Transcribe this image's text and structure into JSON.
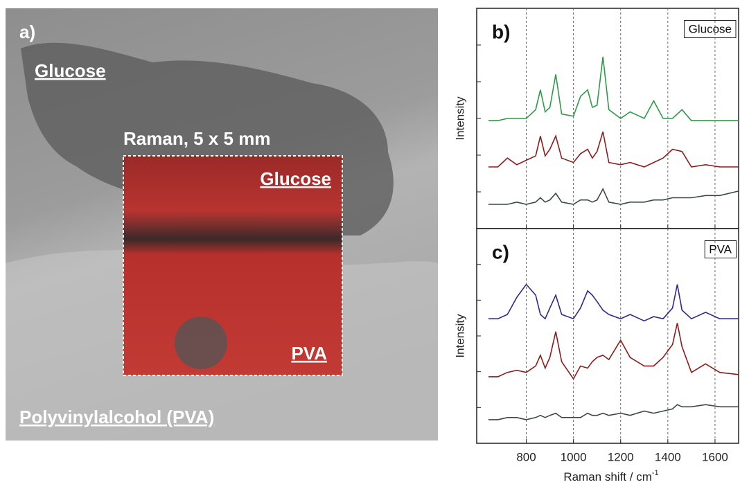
{
  "photo": {
    "panel_label": "a)",
    "labels": [
      "Glucose",
      "Raman, 5 x 5 mm",
      "Glucose",
      "PVA",
      "Polyvinylalcohol (PVA)"
    ]
  },
  "chart_data": [
    {
      "type": "line",
      "panel_label": "b)",
      "annotation": "Glucose",
      "ylabel": "Intensity",
      "x": [
        640,
        680,
        720,
        760,
        800,
        840,
        860,
        880,
        900,
        925,
        950,
        1000,
        1030,
        1060,
        1080,
        1100,
        1125,
        1150,
        1200,
        1240,
        1300,
        1340,
        1380,
        1420,
        1460,
        1500,
        1560,
        1620,
        1700
      ],
      "series": [
        {
          "color": "#2e9a48",
          "values": [
            4.9,
            4.9,
            5.0,
            5.0,
            5.0,
            5.4,
            6.3,
            5.3,
            5.5,
            7.0,
            5.2,
            5.1,
            6.0,
            6.3,
            5.5,
            5.6,
            7.8,
            5.4,
            5.0,
            5.3,
            5.0,
            5.8,
            5.0,
            5.0,
            5.4,
            4.9,
            4.9,
            4.9,
            4.9
          ]
        },
        {
          "color": "#8b1c1c",
          "values": [
            2.8,
            2.8,
            3.2,
            2.9,
            3.1,
            3.3,
            4.2,
            3.3,
            3.6,
            4.2,
            3.2,
            3.0,
            3.4,
            3.6,
            3.2,
            3.5,
            4.4,
            3.0,
            2.9,
            3.0,
            2.8,
            3.0,
            3.2,
            3.6,
            3.5,
            2.8,
            2.9,
            2.8,
            2.8
          ]
        },
        {
          "color": "#3a4747",
          "values": [
            1.1,
            1.1,
            1.1,
            1.2,
            1.1,
            1.2,
            1.4,
            1.2,
            1.3,
            1.6,
            1.2,
            1.1,
            1.3,
            1.3,
            1.2,
            1.3,
            1.8,
            1.2,
            1.1,
            1.2,
            1.2,
            1.3,
            1.3,
            1.4,
            1.4,
            1.4,
            1.5,
            1.5,
            1.7
          ]
        }
      ],
      "xlim": [
        590,
        1700
      ],
      "ylim": [
        0,
        10
      ],
      "xticks": [
        800,
        1000,
        1200,
        1400,
        1600
      ],
      "grid": true
    },
    {
      "type": "line",
      "panel_label": "c)",
      "annotation": "PVA",
      "ylabel": "Intensity",
      "xlabel": "Raman shift / cm",
      "xlabel_sup": "-1",
      "x": [
        640,
        680,
        720,
        760,
        800,
        840,
        860,
        880,
        900,
        925,
        950,
        1000,
        1030,
        1060,
        1080,
        1100,
        1125,
        1150,
        1200,
        1240,
        1300,
        1340,
        1380,
        1420,
        1440,
        1460,
        1500,
        1560,
        1620,
        1700
      ],
      "series": [
        {
          "color": "#2c2a8a",
          "values": [
            5.8,
            5.8,
            6.0,
            6.8,
            7.4,
            6.9,
            6.0,
            5.8,
            6.3,
            6.9,
            6.0,
            5.8,
            6.3,
            7.1,
            6.9,
            6.6,
            6.2,
            6.0,
            5.8,
            6.0,
            5.7,
            5.9,
            5.8,
            6.3,
            7.4,
            6.2,
            5.8,
            6.1,
            5.8,
            5.8
          ]
        },
        {
          "color": "#8b1c1c",
          "values": [
            3.1,
            3.1,
            3.3,
            3.4,
            3.3,
            3.6,
            4.1,
            3.5,
            4.0,
            5.2,
            3.8,
            3.0,
            3.6,
            3.5,
            3.8,
            4.0,
            4.1,
            3.9,
            4.8,
            4.0,
            3.6,
            3.6,
            4.0,
            4.6,
            5.6,
            4.5,
            3.3,
            3.7,
            3.3,
            3.2
          ]
        },
        {
          "color": "#3a4747",
          "values": [
            1.1,
            1.1,
            1.2,
            1.2,
            1.1,
            1.2,
            1.3,
            1.2,
            1.3,
            1.4,
            1.2,
            1.2,
            1.2,
            1.4,
            1.3,
            1.3,
            1.4,
            1.3,
            1.4,
            1.3,
            1.5,
            1.4,
            1.5,
            1.6,
            1.8,
            1.7,
            1.7,
            1.8,
            1.7,
            1.7
          ]
        }
      ],
      "xlim": [
        590,
        1700
      ],
      "ylim": [
        0,
        10
      ],
      "xticks": [
        800,
        1000,
        1200,
        1400,
        1600
      ],
      "grid": true
    }
  ]
}
